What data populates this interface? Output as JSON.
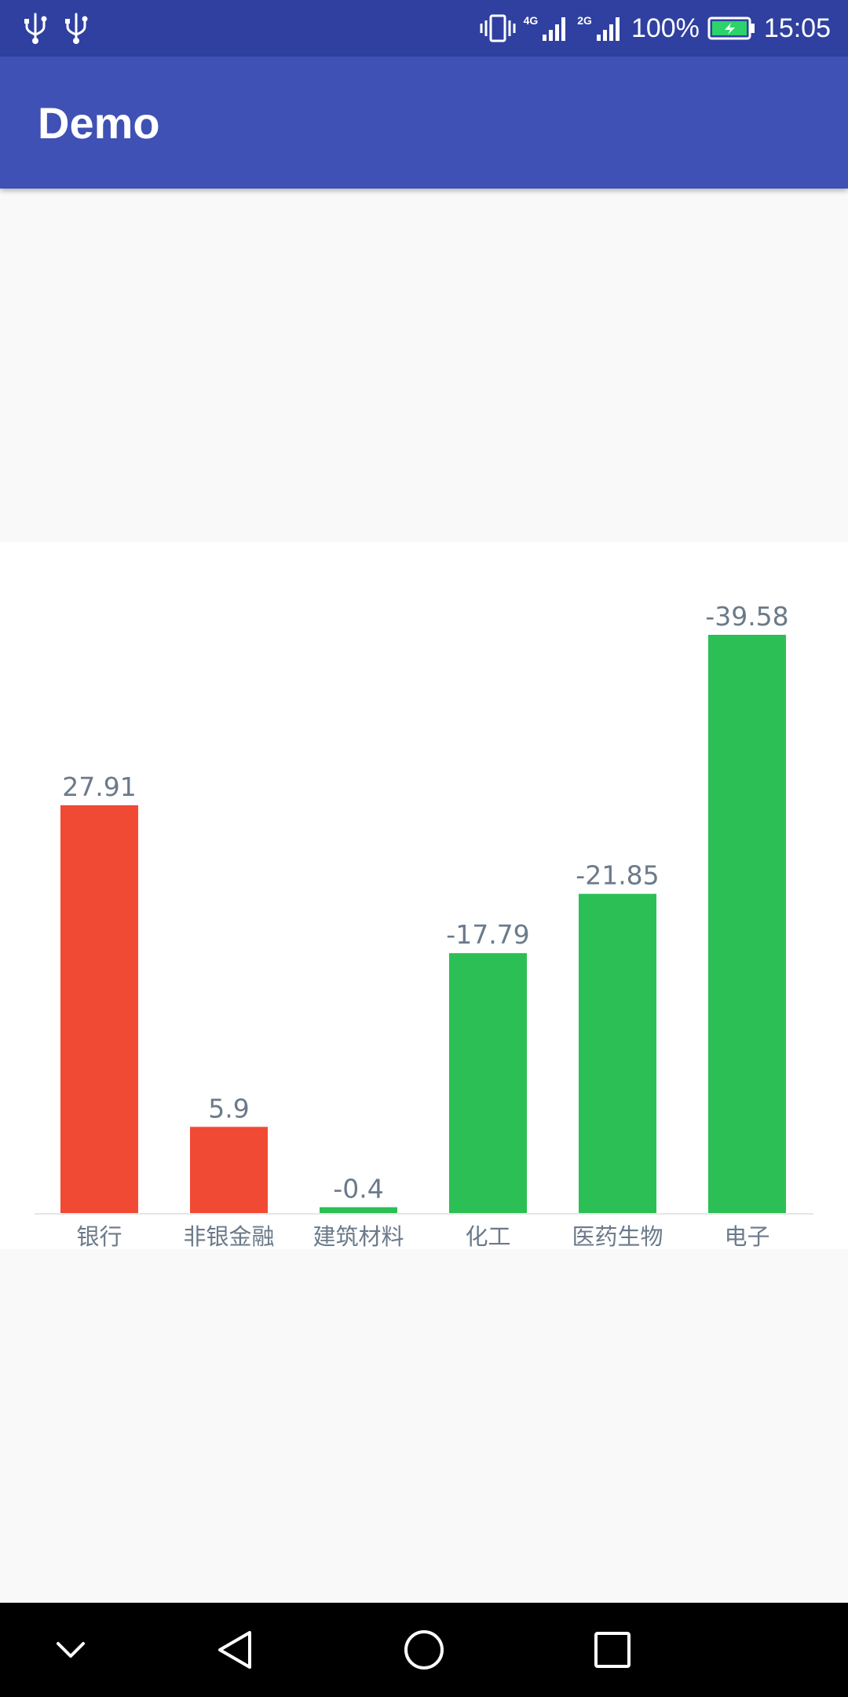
{
  "status_bar": {
    "network_primary": "4G",
    "network_secondary": "2G",
    "battery_text": "100%",
    "time": "15:05",
    "icons": [
      "usb-icon",
      "usb-icon",
      "vibrate-icon",
      "signal-icon",
      "signal-icon",
      "battery-charging-icon"
    ]
  },
  "app_bar": {
    "title": "Demo"
  },
  "nav_bar": {
    "icons": [
      "chevron-down-icon",
      "back-icon",
      "home-icon",
      "recents-icon"
    ]
  },
  "colors": {
    "status_bar": "#3040a0",
    "app_bar": "#3f51b5",
    "positive": "#f04a35",
    "negative": "#2cbf55",
    "label_text": "#6b7a8a"
  },
  "chart_data": {
    "type": "bar",
    "categories": [
      "银行",
      "非银金融",
      "建筑材料",
      "化工",
      "医药生物",
      "电子"
    ],
    "values": [
      27.91,
      5.9,
      -0.4,
      -17.79,
      -21.85,
      -39.58
    ],
    "data_labels": [
      "27.91",
      "5.9",
      "-0.4",
      "-17.79",
      "-21.85",
      "-39.58"
    ],
    "bar_height_basis": "absolute value",
    "color_rule": "red for positive, green for negative",
    "grid": false,
    "legend": "none"
  }
}
